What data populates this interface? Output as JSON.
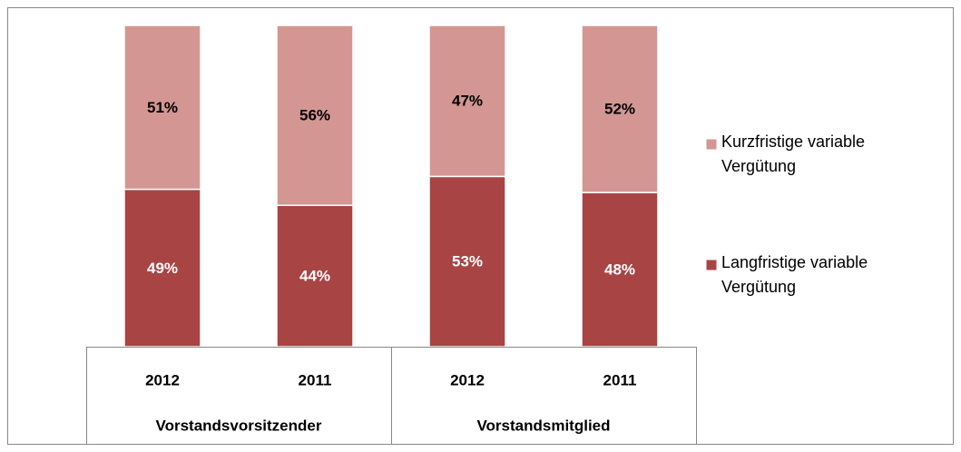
{
  "chart_data": {
    "type": "stacked_bar",
    "groups": [
      {
        "name": "Vorstandsvorsitzender",
        "categories": [
          "2012",
          "2011"
        ]
      },
      {
        "name": "Vorstandsmitglied",
        "categories": [
          "2012",
          "2011"
        ]
      }
    ],
    "series": [
      {
        "name": "Langfristige variable Vergütung",
        "color": "#a84444",
        "values": [
          49,
          44,
          53,
          48
        ],
        "value_labels": [
          "49%",
          "44%",
          "53%",
          "48%"
        ]
      },
      {
        "name": "Kurzfristige variable Vergütung",
        "color": "#d49693",
        "values": [
          51,
          56,
          47,
          52
        ],
        "value_labels": [
          "51%",
          "56%",
          "47%",
          "52%"
        ]
      }
    ],
    "legend": "right"
  }
}
